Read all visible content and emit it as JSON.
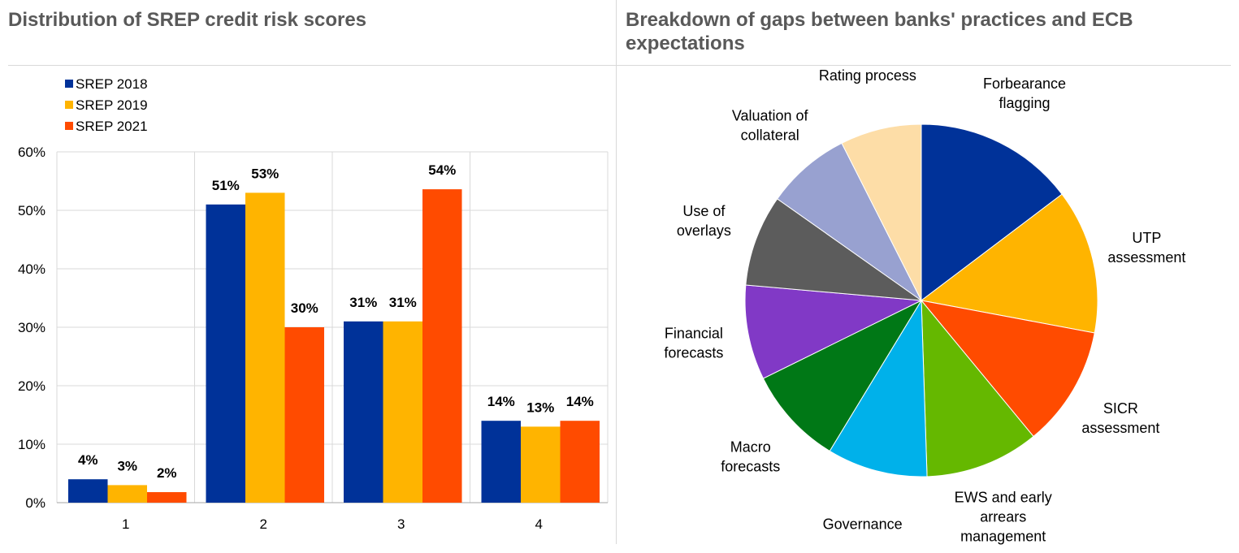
{
  "titles": {
    "left": "Distribution of SREP credit risk scores",
    "right": "Breakdown of gaps between banks' practices and ECB expectations"
  },
  "chart_data": [
    {
      "type": "bar",
      "title": "Distribution of SREP credit risk scores",
      "xlabel": "",
      "ylabel": "",
      "categories": [
        "1",
        "2",
        "3",
        "4"
      ],
      "ylim": [
        0,
        60
      ],
      "yticks": [
        "0%",
        "10%",
        "20%",
        "30%",
        "40%",
        "50%",
        "60%"
      ],
      "grid": true,
      "legend_position": "top-left",
      "series": [
        {
          "name": "SREP 2018",
          "color": "#003299",
          "values": [
            4,
            51,
            31,
            14
          ],
          "labels": [
            "4%",
            "51%",
            "31%",
            "14%"
          ]
        },
        {
          "name": "SREP 2019",
          "color": "#FFB400",
          "values": [
            3,
            53,
            31,
            13
          ],
          "labels": [
            "3%",
            "53%",
            "31%",
            "13%"
          ]
        },
        {
          "name": "SREP 2021",
          "color": "#FF4B00",
          "values": [
            1.8,
            30,
            53.6,
            14
          ],
          "labels": [
            "2%",
            "30%",
            "54%",
            "14%"
          ]
        }
      ]
    },
    {
      "type": "pie",
      "title": "Breakdown of gaps between banks' practices and ECB expectations",
      "slices": [
        {
          "label": [
            "Forbearance",
            "flagging"
          ],
          "value": 14.2,
          "color": "#003299"
        },
        {
          "label": [
            "UTP",
            "assessment"
          ],
          "value": 12.8,
          "color": "#FFB400"
        },
        {
          "label": [
            "SICR",
            "assessment"
          ],
          "value": 10.7,
          "color": "#FF4B00"
        },
        {
          "label": [
            "EWS and early",
            "arrears",
            "management"
          ],
          "value": 10.1,
          "color": "#65B800"
        },
        {
          "label": [
            "Governance"
          ],
          "value": 8.9,
          "color": "#00B1EA"
        },
        {
          "label": [
            "Macro",
            "forecasts"
          ],
          "value": 8.7,
          "color": "#007816"
        },
        {
          "label": [
            "Financial",
            "forecasts"
          ],
          "value": 8.4,
          "color": "#8139C6"
        },
        {
          "label": [
            "Use of",
            "overlays"
          ],
          "value": 8.1,
          "color": "#5C5C5C"
        },
        {
          "label": [
            "Valuation of",
            "collateral"
          ],
          "value": 7.5,
          "color": "#98A1D0"
        },
        {
          "label": [
            "Rating process"
          ],
          "value": 7.2,
          "color": "#FDDDA7"
        }
      ]
    }
  ]
}
